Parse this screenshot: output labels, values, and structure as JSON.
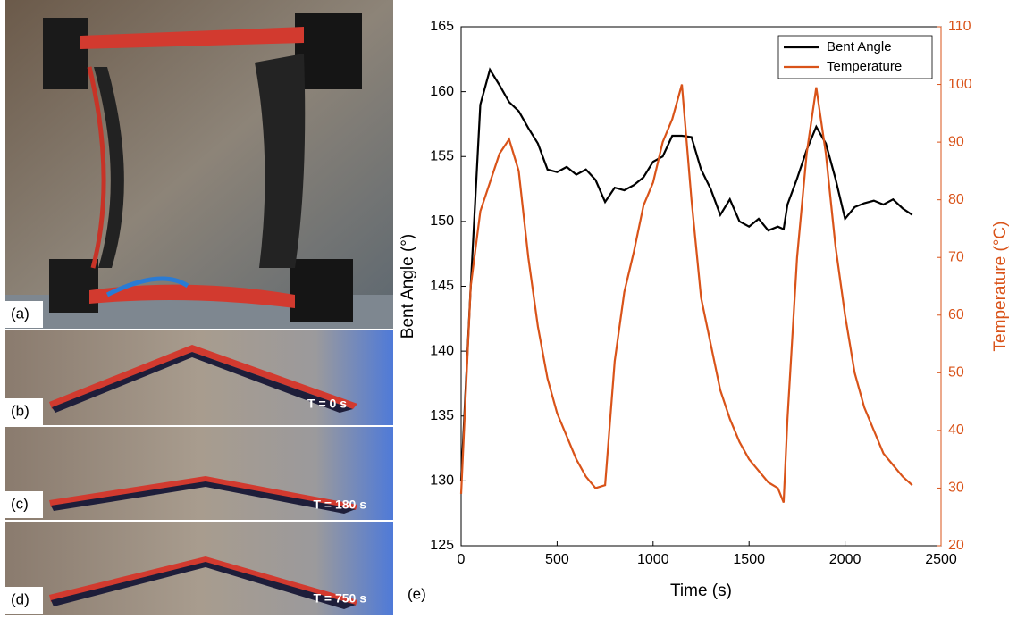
{
  "panels": [
    {
      "label": "(a)"
    },
    {
      "label": "(b)",
      "caption": "T = 0 s"
    },
    {
      "label": "(c)",
      "caption": "T = 180 s"
    },
    {
      "label": "(d)",
      "caption": "T = 750 s"
    }
  ],
  "chart_data": {
    "type": "line",
    "panel_label": "(e)",
    "xlabel": "Time (s)",
    "ylabel": "Bent Angle (°)",
    "y2label": "Temperature (°C)",
    "x": [
      0,
      50,
      100,
      150,
      200,
      250,
      300,
      350,
      400,
      450,
      500,
      550,
      600,
      650,
      700,
      750,
      800,
      850,
      900,
      950,
      1000,
      1050,
      1100,
      1150,
      1200,
      1250,
      1300,
      1350,
      1400,
      1450,
      1500,
      1550,
      1600,
      1650,
      1680,
      1700,
      1750,
      1800,
      1850,
      1900,
      1950,
      2000,
      2050,
      2100,
      2150,
      2200,
      2250,
      2300,
      2350
    ],
    "series": [
      {
        "name": "Bent Angle",
        "color": "#000000",
        "values": [
          130,
          145,
          159,
          161.7,
          160.5,
          159.2,
          158.5,
          157.2,
          156,
          154,
          153.8,
          154.2,
          153.6,
          154,
          153.2,
          151.5,
          152.6,
          152.4,
          152.8,
          153.4,
          154.6,
          155,
          156.6,
          156.6,
          156.5,
          154,
          152.5,
          150.5,
          151.7,
          150,
          149.6,
          150.2,
          149.3,
          149.6,
          149.4,
          151.3,
          153.3,
          155.5,
          157.3,
          156,
          153.3,
          150.2,
          151.1,
          151.4,
          151.6,
          151.3,
          151.7,
          151,
          150.5
        ]
      },
      {
        "name": "Temperature",
        "color": "#d95319",
        "axis": "y2",
        "values": [
          29,
          65,
          78,
          83,
          88,
          90.5,
          85,
          70,
          58,
          49,
          43,
          39,
          35,
          32,
          30,
          30.5,
          52,
          64,
          71,
          79,
          83,
          90,
          94,
          100,
          80,
          63,
          55,
          47,
          42,
          38,
          35,
          33,
          31,
          30,
          27.5,
          42,
          70,
          88,
          99.5,
          88,
          72,
          60,
          50,
          44,
          40,
          36,
          34,
          32,
          30.5
        ]
      }
    ],
    "xlim": [
      0,
      2500
    ],
    "xticks": [
      0,
      500,
      1000,
      1500,
      2000,
      2500
    ],
    "ylim": [
      125,
      165
    ],
    "yticks": [
      125,
      130,
      135,
      140,
      145,
      150,
      155,
      160,
      165
    ],
    "y2lim": [
      20,
      110
    ],
    "y2ticks": [
      20,
      30,
      40,
      50,
      60,
      70,
      80,
      90,
      100,
      110
    ],
    "legend": "top-right"
  }
}
